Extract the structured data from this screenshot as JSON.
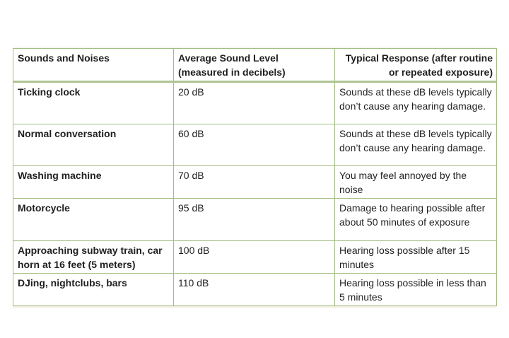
{
  "page": {
    "background": "#ffffff",
    "text_color": "#1f1f1f"
  },
  "table": {
    "border_color": "#a2bd80",
    "header_border_color": "#aec492",
    "columns": [
      {
        "label": "Sounds and Noises",
        "align": "left"
      },
      {
        "label": "Average Sound Level (measured in decibels)",
        "align": "left"
      },
      {
        "label": "Typical Response (after routine or repeated exposure)",
        "align": "right"
      }
    ],
    "rows": [
      {
        "sound": "Ticking clock",
        "level": "20 dB",
        "response": "Sounds at these dB levels typically don’t cause any hearing damage."
      },
      {
        "sound": "Normal conversation",
        "level": "60 dB",
        "response": "Sounds at these dB levels typically don’t cause any hearing damage."
      },
      {
        "sound": "Washing machine",
        "level": "70 dB",
        "response": "You may feel annoyed by the noise"
      },
      {
        "sound": "Motorcycle",
        "level": "95 dB",
        "response": "Damage to hearing possible after about 50 minutes of exposure"
      },
      {
        "sound": "Approaching subway train, car horn at 16 feet (5 meters)",
        "level": "100 dB",
        "response": "Hearing loss possible after 15 minutes"
      },
      {
        "sound": "DJing, nightclubs, bars",
        "level": "110 dB",
        "response": "Hearing loss possible in less than 5 minutes"
      }
    ]
  }
}
